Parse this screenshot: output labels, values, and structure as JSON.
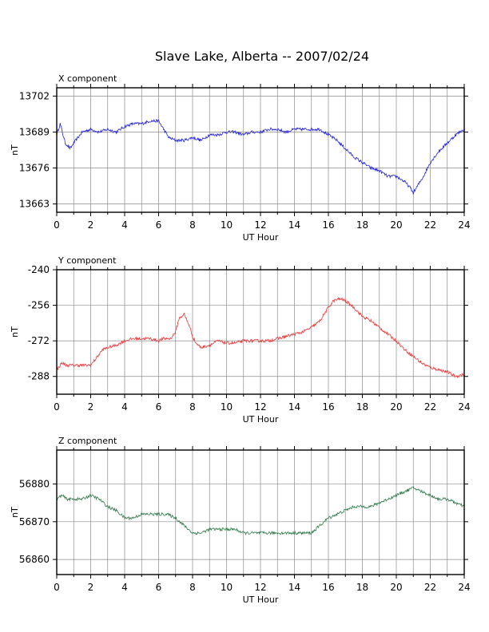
{
  "title": "Slave Lake, Alberta -- 2007/02/24",
  "chart_data": [
    {
      "type": "line",
      "subtitle": "X component",
      "xlabel": "UT Hour",
      "ylabel": "nT",
      "xlim": [
        0,
        24
      ],
      "xticks": [
        0,
        2,
        4,
        6,
        8,
        10,
        12,
        14,
        16,
        18,
        20,
        22,
        24
      ],
      "ylim": [
        13660,
        13705
      ],
      "yticks": [
        13663,
        13676,
        13689,
        13702
      ],
      "grid": true,
      "color": "#2222dd",
      "series": [
        {
          "x": [
            0,
            0.2,
            0.5,
            0.8,
            1.0,
            1.5,
            2.0,
            2.5,
            3.0,
            3.5,
            4.0,
            4.5,
            5.0,
            5.5,
            6.0,
            6.3,
            6.6,
            7.0,
            7.5,
            8.0,
            8.5,
            9.0,
            9.5,
            10.0,
            10.5,
            11.0,
            11.5,
            12.0,
            12.5,
            13.0,
            13.5,
            14.0,
            14.5,
            15.0,
            15.5,
            16.0,
            16.5,
            17.0,
            17.5,
            18.0,
            18.5,
            19.0,
            19.5,
            20.0,
            20.5,
            20.8,
            21.0,
            21.3,
            21.6,
            22.0,
            22.5,
            23.0,
            23.5,
            24.0
          ],
          "y": [
            13688,
            13692,
            13685,
            13683,
            13685,
            13689,
            13690,
            13689,
            13690,
            13689,
            13691,
            13692,
            13692,
            13693,
            13693,
            13690,
            13687,
            13686,
            13686,
            13687,
            13686,
            13688,
            13688,
            13689,
            13689,
            13688,
            13689,
            13689,
            13690,
            13690,
            13689,
            13690,
            13690,
            13690,
            13690,
            13688,
            13686,
            13683,
            13680,
            13678,
            13676,
            13675,
            13673,
            13673,
            13671,
            13669,
            13667,
            13670,
            13673,
            13678,
            13682,
            13685,
            13688,
            13690
          ]
        }
      ]
    },
    {
      "type": "line",
      "subtitle": "Y component",
      "xlabel": "UT Hour",
      "ylabel": "nT",
      "xlim": [
        0,
        24
      ],
      "xticks": [
        0,
        2,
        4,
        6,
        8,
        10,
        12,
        14,
        16,
        18,
        20,
        22,
        24
      ],
      "ylim": [
        -296,
        -240
      ],
      "yticks": [
        -240,
        -256,
        -272,
        -288
      ],
      "grid": true,
      "color": "#ee3333",
      "series": [
        {
          "x": [
            0,
            0.3,
            0.6,
            1.0,
            1.5,
            2.0,
            2.3,
            2.7,
            3.0,
            3.5,
            4.0,
            4.5,
            5.0,
            5.5,
            6.0,
            6.3,
            6.7,
            7.0,
            7.2,
            7.5,
            7.8,
            8.0,
            8.2,
            8.5,
            9.0,
            9.5,
            10.0,
            10.5,
            11.0,
            11.5,
            12.0,
            12.5,
            13.0,
            13.5,
            14.0,
            14.5,
            15.0,
            15.5,
            16.0,
            16.3,
            16.7,
            17.0,
            17.5,
            18.0,
            18.5,
            19.0,
            19.5,
            20.0,
            20.5,
            21.0,
            21.5,
            22.0,
            22.5,
            23.0,
            23.5,
            24.0
          ],
          "y": [
            -285,
            -282,
            -283,
            -283,
            -283,
            -283,
            -280,
            -276,
            -275,
            -274,
            -272,
            -271,
            -271,
            -271,
            -272,
            -271,
            -271,
            -268,
            -262,
            -260,
            -265,
            -270,
            -273,
            -275,
            -274,
            -272,
            -273,
            -273,
            -272,
            -272,
            -272,
            -272,
            -271,
            -270,
            -269,
            -268,
            -266,
            -263,
            -257,
            -254,
            -253,
            -254,
            -257,
            -261,
            -263,
            -266,
            -269,
            -272,
            -276,
            -279,
            -282,
            -284,
            -285,
            -286,
            -288,
            -287
          ]
        }
      ]
    },
    {
      "type": "line",
      "subtitle": "Z component",
      "xlabel": "UT Hour",
      "ylabel": "nT",
      "xlim": [
        0,
        24
      ],
      "xticks": [
        0,
        2,
        4,
        6,
        8,
        10,
        12,
        14,
        16,
        18,
        20,
        22,
        24
      ],
      "ylim": [
        56856,
        56889
      ],
      "yticks": [
        56860,
        56870,
        56880
      ],
      "grid": true,
      "color": "#2d7a4a",
      "series": [
        {
          "x": [
            0,
            0.3,
            0.6,
            1.0,
            1.5,
            2.0,
            2.5,
            3.0,
            3.5,
            4.0,
            4.5,
            5.0,
            5.5,
            6.0,
            6.5,
            7.0,
            7.5,
            8.0,
            8.5,
            9.0,
            9.5,
            10.0,
            10.5,
            11.0,
            11.5,
            12.0,
            12.5,
            13.0,
            13.5,
            14.0,
            14.5,
            15.0,
            15.5,
            16.0,
            16.5,
            17.0,
            17.5,
            18.0,
            18.5,
            19.0,
            19.5,
            20.0,
            20.5,
            21.0,
            21.5,
            22.0,
            22.5,
            23.0,
            23.5,
            24.0
          ],
          "y": [
            56876,
            56877,
            56876,
            56876,
            56876,
            56877,
            56876,
            56874,
            56873,
            56871,
            56871,
            56872,
            56872,
            56872,
            56872,
            56871,
            56869,
            56867,
            56867,
            56868,
            56868,
            56868,
            56868,
            56867,
            56867,
            56867,
            56867,
            56867,
            56867,
            56867,
            56867,
            56867,
            56869,
            56871,
            56872,
            56873,
            56874,
            56874,
            56874,
            56875,
            56876,
            56877,
            56878,
            56879,
            56878,
            56877,
            56876,
            56876,
            56875,
            56874
          ]
        }
      ]
    }
  ]
}
